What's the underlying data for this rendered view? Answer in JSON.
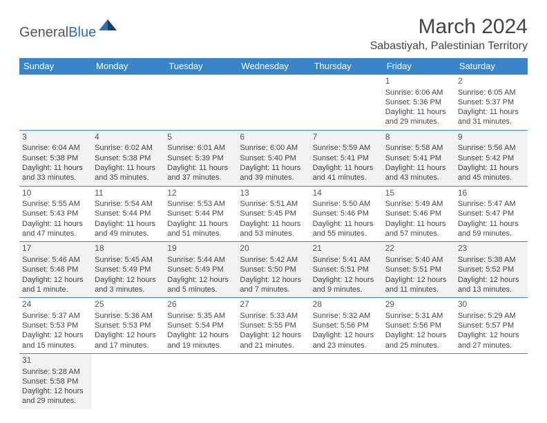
{
  "brand": {
    "text1": "General",
    "text2": "Blue"
  },
  "title": "March 2024",
  "location": "Sabastiyah, Palestinian Territory",
  "header_bg": "#3a84c8",
  "row_border": "#3a84c8",
  "alt_row_bg": "#f2f2f2",
  "columns": [
    "Sunday",
    "Monday",
    "Tuesday",
    "Wednesday",
    "Thursday",
    "Friday",
    "Saturday"
  ],
  "weeks": [
    [
      null,
      null,
      null,
      null,
      null,
      {
        "n": "1",
        "sr": "Sunrise: 6:06 AM",
        "ss": "Sunset: 5:36 PM",
        "dl": "Daylight: 11 hours and 29 minutes."
      },
      {
        "n": "2",
        "sr": "Sunrise: 6:05 AM",
        "ss": "Sunset: 5:37 PM",
        "dl": "Daylight: 11 hours and 31 minutes."
      }
    ],
    [
      {
        "n": "3",
        "sr": "Sunrise: 6:04 AM",
        "ss": "Sunset: 5:38 PM",
        "dl": "Daylight: 11 hours and 33 minutes."
      },
      {
        "n": "4",
        "sr": "Sunrise: 6:02 AM",
        "ss": "Sunset: 5:38 PM",
        "dl": "Daylight: 11 hours and 35 minutes."
      },
      {
        "n": "5",
        "sr": "Sunrise: 6:01 AM",
        "ss": "Sunset: 5:39 PM",
        "dl": "Daylight: 11 hours and 37 minutes."
      },
      {
        "n": "6",
        "sr": "Sunrise: 6:00 AM",
        "ss": "Sunset: 5:40 PM",
        "dl": "Daylight: 11 hours and 39 minutes."
      },
      {
        "n": "7",
        "sr": "Sunrise: 5:59 AM",
        "ss": "Sunset: 5:41 PM",
        "dl": "Daylight: 11 hours and 41 minutes."
      },
      {
        "n": "8",
        "sr": "Sunrise: 5:58 AM",
        "ss": "Sunset: 5:41 PM",
        "dl": "Daylight: 11 hours and 43 minutes."
      },
      {
        "n": "9",
        "sr": "Sunrise: 5:56 AM",
        "ss": "Sunset: 5:42 PM",
        "dl": "Daylight: 11 hours and 45 minutes."
      }
    ],
    [
      {
        "n": "10",
        "sr": "Sunrise: 5:55 AM",
        "ss": "Sunset: 5:43 PM",
        "dl": "Daylight: 11 hours and 47 minutes."
      },
      {
        "n": "11",
        "sr": "Sunrise: 5:54 AM",
        "ss": "Sunset: 5:44 PM",
        "dl": "Daylight: 11 hours and 49 minutes."
      },
      {
        "n": "12",
        "sr": "Sunrise: 5:53 AM",
        "ss": "Sunset: 5:44 PM",
        "dl": "Daylight: 11 hours and 51 minutes."
      },
      {
        "n": "13",
        "sr": "Sunrise: 5:51 AM",
        "ss": "Sunset: 5:45 PM",
        "dl": "Daylight: 11 hours and 53 minutes."
      },
      {
        "n": "14",
        "sr": "Sunrise: 5:50 AM",
        "ss": "Sunset: 5:46 PM",
        "dl": "Daylight: 11 hours and 55 minutes."
      },
      {
        "n": "15",
        "sr": "Sunrise: 5:49 AM",
        "ss": "Sunset: 5:46 PM",
        "dl": "Daylight: 11 hours and 57 minutes."
      },
      {
        "n": "16",
        "sr": "Sunrise: 5:47 AM",
        "ss": "Sunset: 5:47 PM",
        "dl": "Daylight: 11 hours and 59 minutes."
      }
    ],
    [
      {
        "n": "17",
        "sr": "Sunrise: 5:46 AM",
        "ss": "Sunset: 5:48 PM",
        "dl": "Daylight: 12 hours and 1 minute."
      },
      {
        "n": "18",
        "sr": "Sunrise: 5:45 AM",
        "ss": "Sunset: 5:49 PM",
        "dl": "Daylight: 12 hours and 3 minutes."
      },
      {
        "n": "19",
        "sr": "Sunrise: 5:44 AM",
        "ss": "Sunset: 5:49 PM",
        "dl": "Daylight: 12 hours and 5 minutes."
      },
      {
        "n": "20",
        "sr": "Sunrise: 5:42 AM",
        "ss": "Sunset: 5:50 PM",
        "dl": "Daylight: 12 hours and 7 minutes."
      },
      {
        "n": "21",
        "sr": "Sunrise: 5:41 AM",
        "ss": "Sunset: 5:51 PM",
        "dl": "Daylight: 12 hours and 9 minutes."
      },
      {
        "n": "22",
        "sr": "Sunrise: 5:40 AM",
        "ss": "Sunset: 5:51 PM",
        "dl": "Daylight: 12 hours and 11 minutes."
      },
      {
        "n": "23",
        "sr": "Sunrise: 5:38 AM",
        "ss": "Sunset: 5:52 PM",
        "dl": "Daylight: 12 hours and 13 minutes."
      }
    ],
    [
      {
        "n": "24",
        "sr": "Sunrise: 5:37 AM",
        "ss": "Sunset: 5:53 PM",
        "dl": "Daylight: 12 hours and 15 minutes."
      },
      {
        "n": "25",
        "sr": "Sunrise: 5:36 AM",
        "ss": "Sunset: 5:53 PM",
        "dl": "Daylight: 12 hours and 17 minutes."
      },
      {
        "n": "26",
        "sr": "Sunrise: 5:35 AM",
        "ss": "Sunset: 5:54 PM",
        "dl": "Daylight: 12 hours and 19 minutes."
      },
      {
        "n": "27",
        "sr": "Sunrise: 5:33 AM",
        "ss": "Sunset: 5:55 PM",
        "dl": "Daylight: 12 hours and 21 minutes."
      },
      {
        "n": "28",
        "sr": "Sunrise: 5:32 AM",
        "ss": "Sunset: 5:56 PM",
        "dl": "Daylight: 12 hours and 23 minutes."
      },
      {
        "n": "29",
        "sr": "Sunrise: 5:31 AM",
        "ss": "Sunset: 5:56 PM",
        "dl": "Daylight: 12 hours and 25 minutes."
      },
      {
        "n": "30",
        "sr": "Sunrise: 5:29 AM",
        "ss": "Sunset: 5:57 PM",
        "dl": "Daylight: 12 hours and 27 minutes."
      }
    ],
    [
      {
        "n": "31",
        "sr": "Sunrise: 5:28 AM",
        "ss": "Sunset: 5:58 PM",
        "dl": "Daylight: 12 hours and 29 minutes."
      },
      null,
      null,
      null,
      null,
      null,
      null
    ]
  ]
}
